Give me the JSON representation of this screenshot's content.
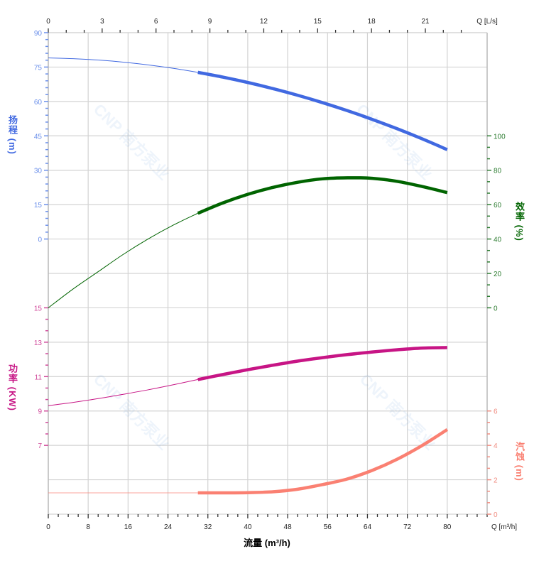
{
  "chart_data": {
    "type": "line",
    "x_axis": {
      "label": "流量 (m³/h)",
      "unit_label": "Q [m³/h]",
      "range": [
        0,
        88
      ],
      "ticks": [
        0,
        8,
        16,
        24,
        32,
        40,
        48,
        56,
        64,
        72,
        80
      ],
      "minor_step": 2
    },
    "x2_axis": {
      "unit_label": "Q [L/s]",
      "range": [
        0,
        24.44
      ],
      "ticks": [
        0,
        3,
        6,
        9,
        12,
        15,
        18,
        21
      ],
      "minor_step": 1
    },
    "grid": true,
    "watermark": "CNP 南方泵业",
    "series": [
      {
        "key": "head",
        "axis_label": "扬程 (m)",
        "axis_side": "left",
        "ticks": [
          0,
          15,
          30,
          45,
          60,
          75,
          90
        ],
        "ylim": [
          0,
          90
        ],
        "color": "#4169E1",
        "tick_color": "#6A8FEA",
        "operating_range": [
          30,
          80
        ],
        "x": [
          0,
          5,
          10,
          15,
          20,
          25,
          30,
          35,
          40,
          45,
          50,
          55,
          60,
          65,
          70,
          75,
          80
        ],
        "y": [
          79.0,
          78.67,
          78.06,
          77.16,
          75.96,
          74.47,
          72.7,
          70.63,
          68.28,
          65.63,
          62.7,
          59.47,
          55.96,
          52.15,
          48.06,
          43.67,
          38.99
        ]
      },
      {
        "key": "efficiency",
        "axis_label": "效率 (%)",
        "axis_side": "right",
        "ticks": [
          0,
          20,
          40,
          60,
          80,
          100
        ],
        "ylim": [
          0,
          100
        ],
        "color": "#006400",
        "tick_color": "#2E7D32",
        "operating_range": [
          30,
          80
        ],
        "x": [
          0,
          5,
          10,
          15,
          20,
          25,
          30,
          35,
          40,
          45,
          50,
          55,
          60,
          65,
          70,
          75,
          80
        ],
        "y": [
          0,
          11,
          21,
          31,
          40,
          48,
          55,
          61,
          66,
          70,
          73,
          75,
          75.6,
          75.3,
          73.5,
          70.5,
          67
        ]
      },
      {
        "key": "power",
        "axis_label": "功率 (KW)",
        "axis_side": "left",
        "ticks": [
          7,
          9,
          11,
          13,
          15
        ],
        "ylim": [
          7,
          15
        ],
        "color": "#C71585",
        "tick_color": "#D0489A",
        "operating_range": [
          30,
          80
        ],
        "x": [
          0,
          5,
          10,
          15,
          20,
          25,
          30,
          35,
          40,
          45,
          50,
          55,
          60,
          65,
          70,
          75,
          80
        ],
        "y": [
          9.31,
          9.5,
          9.72,
          9.97,
          10.23,
          10.52,
          10.83,
          11.12,
          11.4,
          11.66,
          11.9,
          12.1,
          12.28,
          12.43,
          12.56,
          12.66,
          12.69
        ]
      },
      {
        "key": "npsh",
        "axis_label": "汽蚀 (m)",
        "axis_side": "right",
        "ticks": [
          0,
          2,
          4,
          6
        ],
        "ylim": [
          0,
          6
        ],
        "color": "#FA8072",
        "tick_color": "#F08C80",
        "operating_range": [
          30,
          80
        ],
        "x": [
          0,
          5,
          10,
          15,
          20,
          25,
          30,
          35,
          40,
          45,
          50,
          55,
          60,
          65,
          70,
          75,
          80
        ],
        "y": [
          1.24,
          1.24,
          1.24,
          1.24,
          1.24,
          1.24,
          1.24,
          1.24,
          1.25,
          1.3,
          1.45,
          1.72,
          2.05,
          2.55,
          3.2,
          4.0,
          4.92
        ]
      }
    ]
  }
}
